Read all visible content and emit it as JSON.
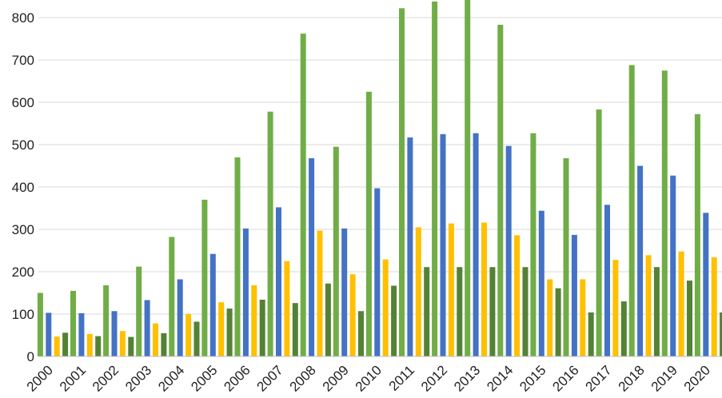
{
  "chart_data": {
    "type": "bar",
    "title": "",
    "xlabel": "",
    "ylabel": "",
    "ylim": [
      0,
      850
    ],
    "yticks": [
      0,
      100,
      200,
      300,
      400,
      500,
      600,
      700,
      800
    ],
    "grid": true,
    "legend": "none",
    "categories": [
      "2000",
      "2001",
      "2002",
      "2003",
      "2004",
      "2005",
      "2006",
      "2007",
      "2008",
      "2009",
      "2010",
      "2011",
      "2012",
      "2013",
      "2014",
      "2015",
      "2016",
      "2017",
      "2018",
      "2019",
      "2020"
    ],
    "series": [
      {
        "color": "#70ad47",
        "values": [
          150,
          155,
          168,
          212,
          282,
          370,
          470,
          578,
          762,
          495,
          625,
          822,
          838,
          848,
          783,
          527,
          468,
          583,
          688,
          675,
          572
        ]
      },
      {
        "color": "#4472c4",
        "values": [
          103,
          102,
          107,
          133,
          182,
          242,
          302,
          352,
          468,
          302,
          397,
          517,
          525,
          527,
          497,
          344,
          287,
          358,
          450,
          427,
          339
        ]
      },
      {
        "color": "#ffc000",
        "values": [
          47,
          53,
          60,
          78,
          100,
          128,
          168,
          225,
          297,
          194,
          229,
          305,
          314,
          316,
          286,
          182,
          182,
          228,
          239,
          248,
          234
        ]
      },
      {
        "color": "#548235",
        "values": [
          56,
          48,
          46,
          55,
          82,
          113,
          134,
          126,
          172,
          107,
          167,
          211,
          211,
          211,
          211,
          161,
          104,
          130,
          211,
          179,
          104
        ]
      }
    ]
  }
}
